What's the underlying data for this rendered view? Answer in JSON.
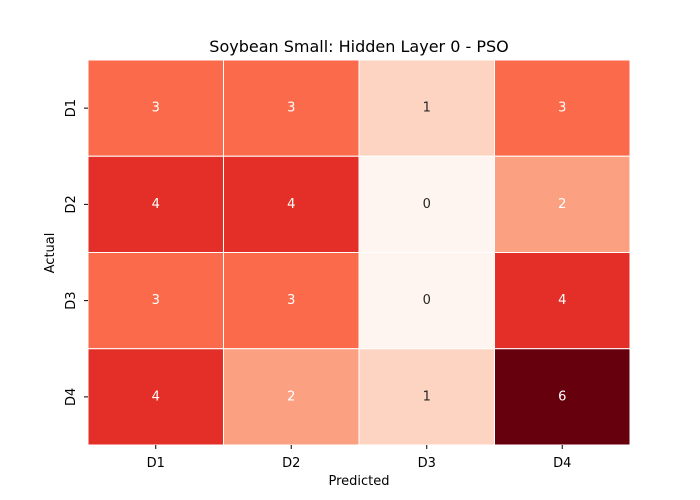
{
  "chart_data": {
    "type": "heatmap",
    "title": "Soybean Small: Hidden Layer 0 - PSO",
    "xlabel": "Predicted",
    "ylabel": "Actual",
    "x_categories": [
      "D1",
      "D2",
      "D3",
      "D4"
    ],
    "y_categories": [
      "D1",
      "D2",
      "D3",
      "D4"
    ],
    "values": [
      [
        3,
        3,
        1,
        3
      ],
      [
        4,
        4,
        0,
        2
      ],
      [
        3,
        3,
        0,
        4
      ],
      [
        4,
        2,
        1,
        6
      ]
    ],
    "colormap": "Reds",
    "vmin": 0,
    "vmax": 6,
    "colorbar": false
  }
}
